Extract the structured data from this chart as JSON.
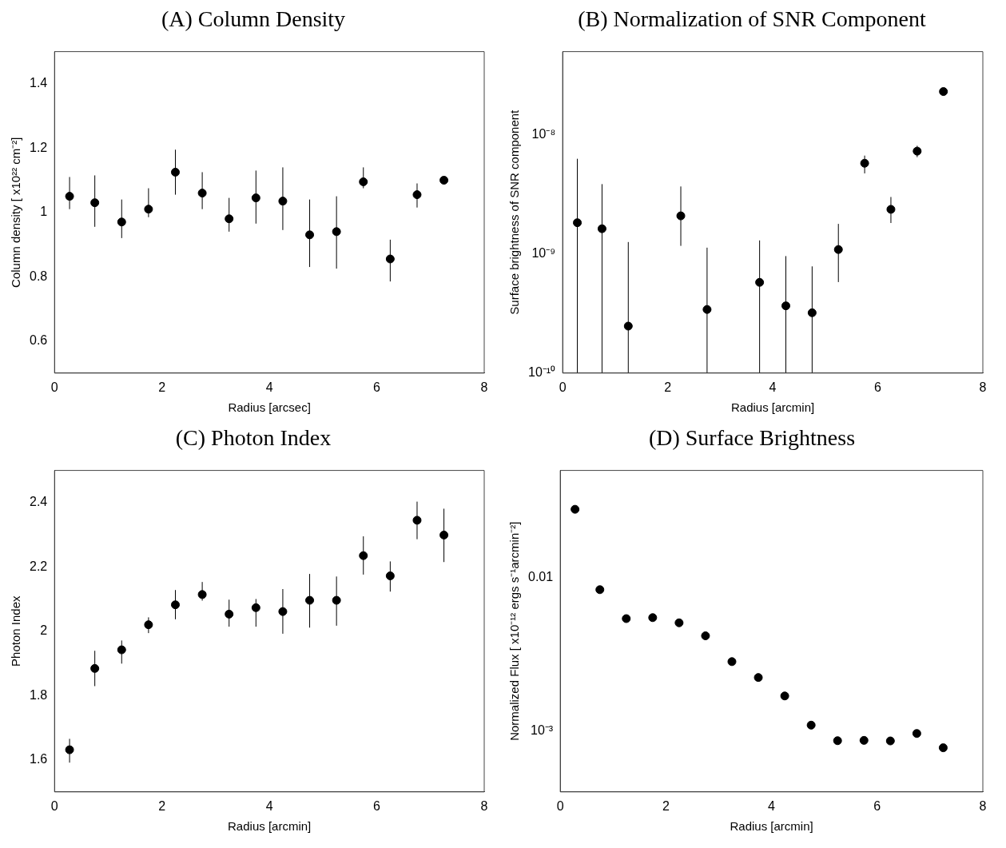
{
  "chart_data": [
    {
      "type": "scatter",
      "title": "(A) Column Density",
      "xlabel": "Radius [arcsec]",
      "ylabel": "Column density [ x10²² cm⁻²]",
      "color": "#000000",
      "marker": "circle",
      "x": [
        0.28,
        0.75,
        1.25,
        1.75,
        2.25,
        2.75,
        3.25,
        3.75,
        4.25,
        4.75,
        5.25,
        5.75,
        6.25,
        6.75,
        7.25
      ],
      "values": [
        1.05,
        1.03,
        0.97,
        1.01,
        1.125,
        1.06,
        0.98,
        1.045,
        1.035,
        0.93,
        0.94,
        1.095,
        0.855,
        1.055,
        1.1
      ],
      "errors": [
        [
          1.01,
          1.11
        ],
        [
          0.955,
          1.115
        ],
        [
          0.92,
          1.04
        ],
        [
          0.985,
          1.075
        ],
        [
          1.055,
          1.195
        ],
        [
          1.01,
          1.125
        ],
        [
          0.94,
          1.045
        ],
        [
          0.965,
          1.13
        ],
        [
          0.945,
          1.14
        ],
        [
          0.83,
          1.04
        ],
        [
          0.825,
          1.05
        ],
        [
          1.075,
          1.14
        ],
        [
          0.785,
          0.915
        ],
        [
          1.015,
          1.09
        ],
        [
          1.09,
          1.11
        ]
      ],
      "xlim": [
        0,
        8
      ],
      "xticks": [
        0,
        2,
        4,
        6,
        8
      ],
      "ylim": [
        0.5,
        1.5
      ],
      "yticks": [
        0.6,
        0.8,
        1,
        1.2,
        1.4
      ]
    },
    {
      "type": "scatter",
      "title": "(B) Normalization of SNR Component",
      "xlabel": "Radius [arcmin]",
      "ylabel": "Surface brightness of SNR component",
      "color": "#000000",
      "marker": "circle",
      "log": "y",
      "x": [
        0.28,
        0.75,
        1.25,
        1.75,
        2.25,
        2.75,
        3.25,
        3.75,
        4.25,
        4.75,
        5.25,
        5.75,
        6.25,
        6.75,
        7.25
      ],
      "values": [
        1.83e-09,
        1.63e-09,
        2.48e-10,
        null,
        2.09e-09,
        3.42e-10,
        null,
        5.78e-10,
        3.67e-10,
        3.21e-10,
        1.09e-09,
        5.78e-09,
        2.37e-09,
        7.3e-09,
        2.31e-08
      ],
      "errors": [
        [
          1e-10,
          6.3e-09
        ],
        [
          1e-10,
          3.86e-09
        ],
        [
          1e-10,
          1.26e-09
        ],
        null,
        [
          1.17e-09,
          3.69e-09
        ],
        [
          1e-10,
          1.13e-09
        ],
        null,
        [
          1e-10,
          1.3e-09
        ],
        [
          1e-10,
          9.6e-10
        ],
        [
          1e-10,
          7.87e-10
        ],
        [
          5.81e-10,
          1.79e-09
        ],
        [
          4.75e-09,
          6.7e-09
        ],
        [
          1.82e-09,
          3.01e-09
        ],
        [
          6.5e-09,
          8.1e-09
        ],
        null
      ],
      "xlim": [
        0,
        8
      ],
      "xticks": [
        0,
        2,
        4,
        6,
        8
      ],
      "ylim": [
        1e-10,
        5e-08
      ],
      "yticks": [
        {
          "value": 1e-10,
          "label": "10⁻¹⁰"
        },
        {
          "value": 1e-09,
          "label": "10⁻⁹"
        },
        {
          "value": 1e-08,
          "label": "10⁻⁸"
        }
      ]
    },
    {
      "type": "scatter",
      "title": "(C) Photon Index",
      "xlabel": "Radius [arcmin]",
      "ylabel": "Photon Index",
      "color": "#000000",
      "marker": "circle",
      "x": [
        0.28,
        0.75,
        1.25,
        1.75,
        2.25,
        2.75,
        3.25,
        3.75,
        4.25,
        4.75,
        5.25,
        5.75,
        6.25,
        6.75,
        7.25
      ],
      "values": [
        1.631,
        1.884,
        1.942,
        2.02,
        2.082,
        2.114,
        2.053,
        2.073,
        2.061,
        2.096,
        2.096,
        2.235,
        2.172,
        2.345,
        2.299
      ],
      "errors": [
        [
          1.591,
          1.665
        ],
        [
          1.829,
          1.939
        ],
        [
          1.899,
          1.971
        ],
        [
          1.994,
          2.043
        ],
        [
          2.037,
          2.128
        ],
        [
          2.095,
          2.153
        ],
        [
          2.014,
          2.098
        ],
        [
          2.014,
          2.1
        ],
        [
          1.992,
          2.131
        ],
        [
          2.011,
          2.178
        ],
        [
          2.017,
          2.17
        ],
        [
          2.176,
          2.295
        ],
        [
          2.123,
          2.217
        ],
        [
          2.286,
          2.403
        ],
        [
          2.215,
          2.381
        ]
      ],
      "xlim": [
        0,
        8
      ],
      "xticks": [
        0,
        2,
        4,
        6,
        8
      ],
      "ylim": [
        1.5,
        2.5
      ],
      "yticks": [
        1.6,
        1.8,
        2,
        2.2,
        2.4
      ]
    },
    {
      "type": "scatter",
      "title": "(D) Surface Brightness",
      "xlabel": "Radius [arcmin]",
      "ylabel": "Normalized Flux [ x10⁻¹² ergs s⁻¹arcmin⁻²]",
      "color": "#000000",
      "marker": "circle",
      "log": "y",
      "x": [
        0.28,
        0.75,
        1.25,
        1.75,
        2.25,
        2.75,
        3.25,
        3.75,
        4.25,
        4.75,
        5.25,
        5.75,
        6.25,
        6.75,
        7.25
      ],
      "values": [
        0.0279,
        0.00834,
        0.0054,
        0.00548,
        0.00507,
        0.00417,
        0.00283,
        0.00223,
        0.00169,
        0.00109,
        0.000863,
        0.000867,
        0.00086,
        0.000962,
        0.000776
      ],
      "xlim": [
        0,
        8
      ],
      "xticks": [
        0,
        2,
        4,
        6,
        8
      ],
      "ylim": [
        0.0004,
        0.05
      ],
      "yticks": [
        {
          "value": 0.001,
          "label": "10⁻³"
        },
        0.01
      ]
    }
  ]
}
